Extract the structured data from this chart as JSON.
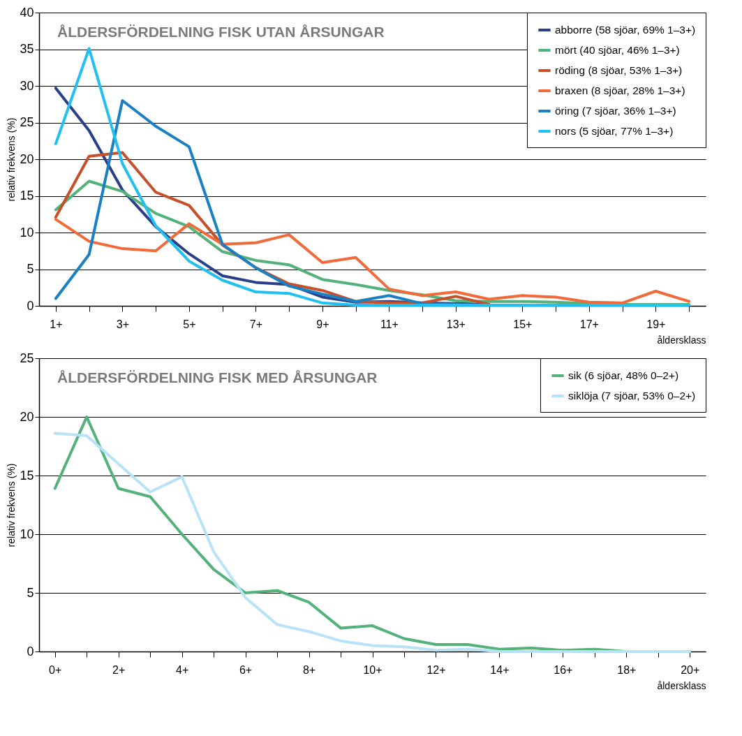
{
  "chart_data": [
    {
      "type": "line",
      "title": "ÅLDERSFÖRDELNING FISK UTAN ÅRSUNGAR",
      "xlabel": "åldersklass",
      "ylabel": "relativ frekvens (%)",
      "categories": [
        "1+",
        null,
        "3+",
        null,
        "5+",
        null,
        "7+",
        null,
        "9+",
        null,
        "11+",
        null,
        "13+",
        null,
        "15+",
        null,
        "17+",
        null,
        "19+",
        null
      ],
      "ylim": [
        0,
        40
      ],
      "yticks": [
        0,
        5,
        10,
        15,
        20,
        25,
        30,
        35,
        40
      ],
      "grid": "y",
      "legend": "top right",
      "series": [
        {
          "name": "abborre (58 sjöar, 69% 1–3+)",
          "color": "#2a3f8a",
          "values": [
            29.7,
            23.9,
            15.8,
            10.8,
            7.1,
            4.1,
            3.2,
            2.9,
            1.2,
            0.5,
            0.6,
            0.4,
            0.3,
            0.2,
            null,
            null,
            null,
            null,
            null,
            null
          ]
        },
        {
          "name": "mört (40 sjöar, 46% 1–3+)",
          "color": "#52b27a",
          "values": [
            13.1,
            17.0,
            15.6,
            12.6,
            10.8,
            7.4,
            6.2,
            5.6,
            3.6,
            2.9,
            2.1,
            1.5,
            0.7,
            0.6,
            0.6,
            0.5,
            0.3,
            0.2,
            0.2,
            0.2
          ]
        },
        {
          "name": "röding (8 sjöar, 53% 1–3+)",
          "color": "#c5502a",
          "values": [
            12.1,
            20.4,
            20.9,
            15.5,
            13.7,
            8.3,
            5.2,
            3.0,
            2.1,
            0.6,
            0.4,
            0.4,
            1.3,
            0.2,
            null,
            null,
            null,
            null,
            null,
            null
          ]
        },
        {
          "name": "braxen (8 sjöar, 28% 1–3+)",
          "color": "#f06a3a",
          "values": [
            11.8,
            8.8,
            7.8,
            7.5,
            11.2,
            8.4,
            8.6,
            9.7,
            5.9,
            6.6,
            2.3,
            1.4,
            1.9,
            0.9,
            1.4,
            1.2,
            0.5,
            0.4,
            2.0,
            0.6
          ]
        },
        {
          "name": "öring (7 sjöar, 36% 1–3+)",
          "color": "#1a80c4",
          "values": [
            1.0,
            7.0,
            28.0,
            24.5,
            21.7,
            8.4,
            5.2,
            2.7,
            1.6,
            0.6,
            1.4,
            0.3,
            0.2,
            0.1,
            null,
            null,
            null,
            null,
            null,
            null
          ]
        },
        {
          "name": "nors (5 sjöar, 77% 1–3+)",
          "color": "#20c0f0",
          "values": [
            22.1,
            35.1,
            19.4,
            10.9,
            6.1,
            3.5,
            1.9,
            1.7,
            0.4,
            0.1,
            0.1,
            0.1,
            0.1,
            0.1,
            0.1,
            0.1,
            0.1,
            0.1,
            0.1,
            0.1
          ]
        }
      ]
    },
    {
      "type": "line",
      "title": "ÅLDERSFÖRDELNING FISK MED ÅRSUNGAR",
      "xlabel": "åldersklass",
      "ylabel": "relativ frekvens (%)",
      "categories": [
        "0+",
        null,
        "2+",
        null,
        "4+",
        null,
        "6+",
        null,
        "8+",
        null,
        "10+",
        null,
        "12+",
        null,
        "14+",
        null,
        "16+",
        null,
        "18+",
        null,
        "20+"
      ],
      "ylim": [
        0,
        25
      ],
      "yticks": [
        0,
        5,
        10,
        15,
        20,
        25
      ],
      "grid": "y",
      "legend": "top right",
      "series": [
        {
          "name": "sik (6 sjöar, 48% 0–2+)",
          "color": "#52b27a",
          "values": [
            13.9,
            20.0,
            13.9,
            13.2,
            10.0,
            7.0,
            5.0,
            5.2,
            4.2,
            2.0,
            2.2,
            1.1,
            0.6,
            0.6,
            0.2,
            0.3,
            0.1,
            0.2,
            0,
            0,
            0
          ]
        },
        {
          "name": "siklöja (7 sjöar, 53% 0–2+)",
          "color": "#b8e2f8",
          "values": [
            18.6,
            18.4,
            16.0,
            13.6,
            14.9,
            8.5,
            4.6,
            2.3,
            1.7,
            0.9,
            0.5,
            0.4,
            0.1,
            0.2,
            0,
            0,
            0,
            0,
            0,
            0,
            0
          ]
        }
      ]
    }
  ]
}
